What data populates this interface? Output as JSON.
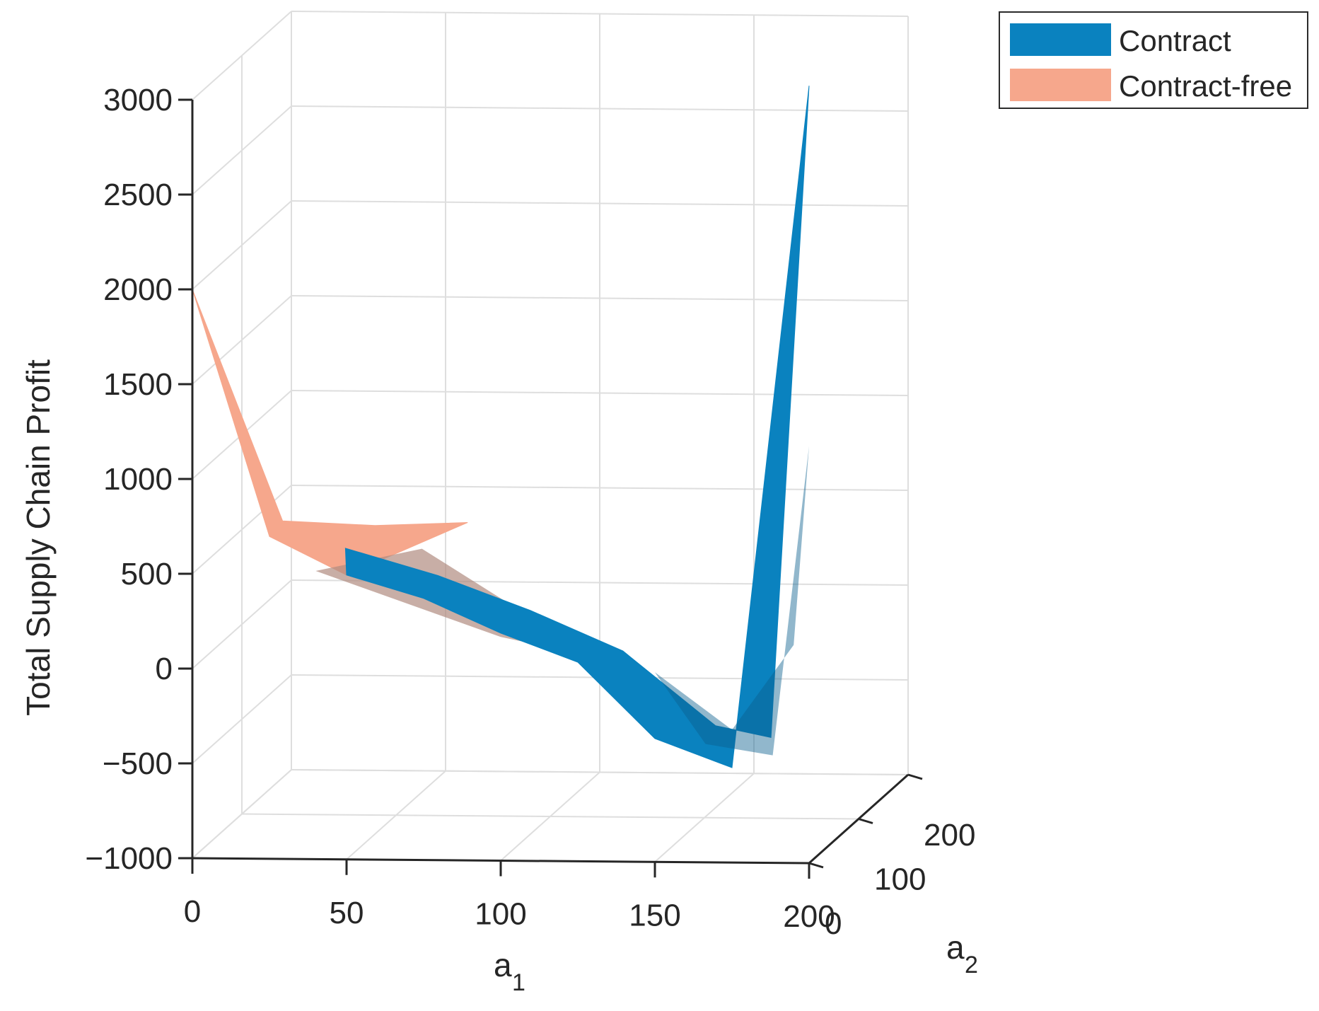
{
  "chart_data": {
    "type": "surface",
    "title": "",
    "xlabel": "a",
    "xlabel_sub": "1",
    "ylabel": "a",
    "ylabel_sub": "2",
    "zlabel": "Total Supply Chain Profit",
    "x_ticks": [
      "0",
      "50",
      "100",
      "150",
      "200"
    ],
    "y_ticks": [
      "0",
      "100",
      "200"
    ],
    "z_ticks": [
      "-1000",
      "-500",
      "0",
      "500",
      "1000",
      "1500",
      "2000",
      "2500",
      "3000"
    ],
    "xlim": [
      0,
      200
    ],
    "ylim": [
      0,
      200
    ],
    "zlim": [
      -1000,
      3000
    ],
    "grid": true,
    "legend_position": "top-right",
    "series": [
      {
        "name": "Contract",
        "color": "#0a82bf",
        "profile_a1": [
          50,
          75,
          100,
          125,
          150,
          175,
          200
        ],
        "profile_z": [
          500,
          380,
          200,
          50,
          -350,
          -500,
          3100
        ]
      },
      {
        "name": "Contract-free",
        "color": "#f6a78c",
        "profile_a1": [
          0,
          25,
          50
        ],
        "profile_z": [
          2000,
          700,
          500
        ]
      }
    ]
  }
}
